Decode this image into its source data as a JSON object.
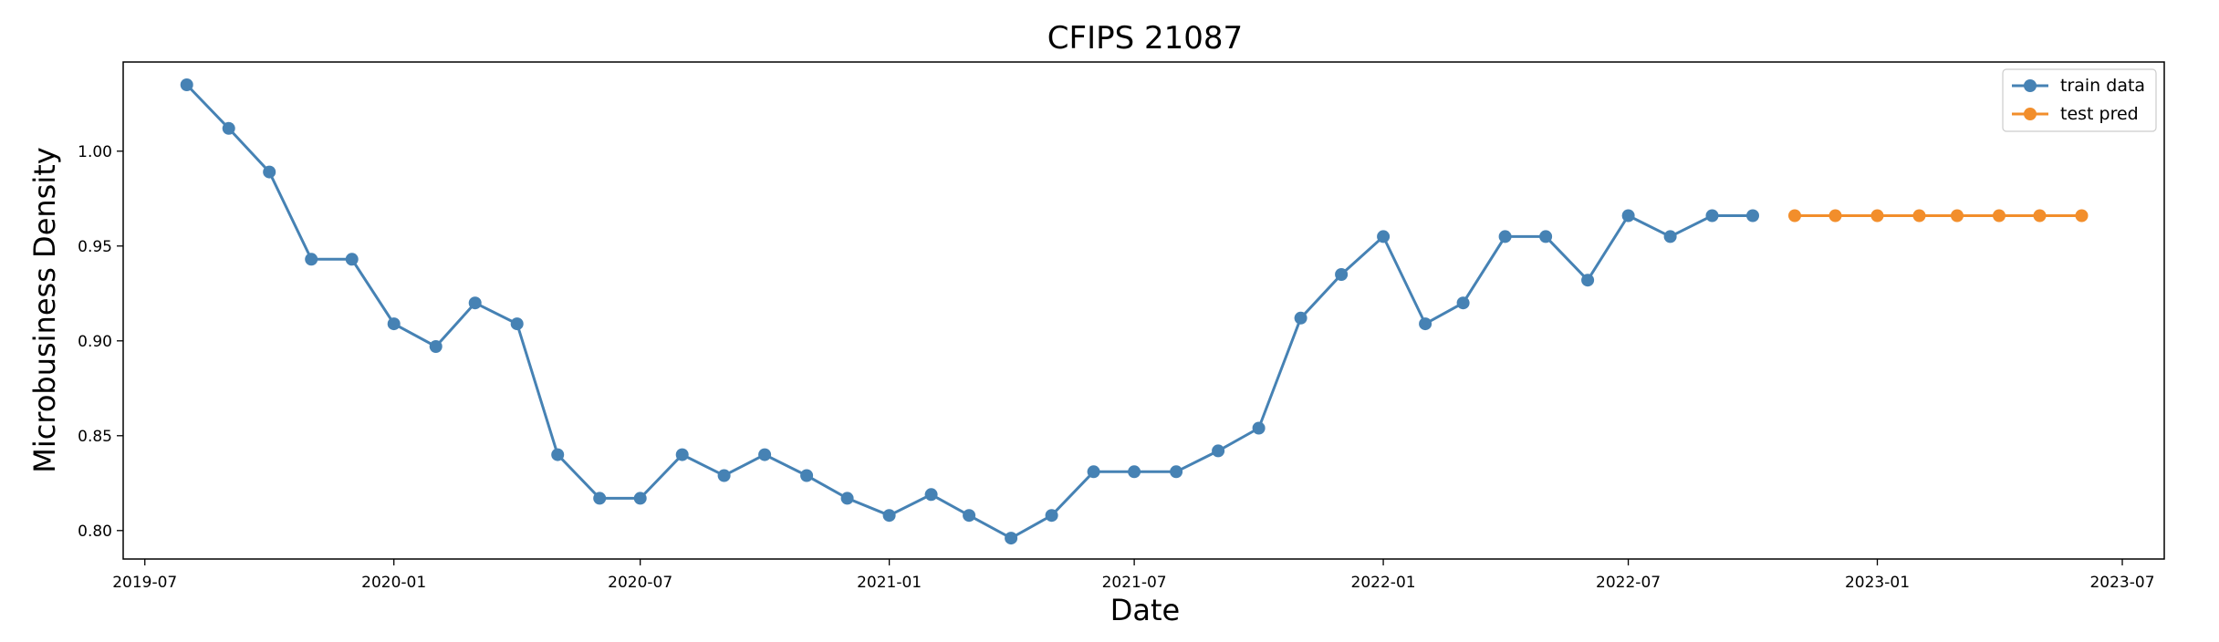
{
  "chart_data": {
    "type": "line",
    "title": "CFIPS 21087",
    "xlabel": "Date",
    "ylabel": "Microbusiness Density",
    "x_axis_type": "date",
    "xlim": [
      "2019-06-15",
      "2023-08-01"
    ],
    "ylim": [
      0.785,
      1.047
    ],
    "x_ticks": [
      "2019-07",
      "2020-01",
      "2020-07",
      "2021-01",
      "2021-07",
      "2022-01",
      "2022-07",
      "2023-01",
      "2023-07"
    ],
    "y_ticks": [
      "0.80",
      "0.85",
      "0.90",
      "0.95",
      "1.00"
    ],
    "grid": false,
    "legend_position": "top-right",
    "series": [
      {
        "name": "train data",
        "color": "#4682b4",
        "marker": "circle",
        "x": [
          "2019-08-01",
          "2019-09-01",
          "2019-10-01",
          "2019-11-01",
          "2019-12-01",
          "2020-01-01",
          "2020-02-01",
          "2020-03-01",
          "2020-04-01",
          "2020-05-01",
          "2020-06-01",
          "2020-07-01",
          "2020-08-01",
          "2020-09-01",
          "2020-10-01",
          "2020-11-01",
          "2020-12-01",
          "2021-01-01",
          "2021-02-01",
          "2021-03-01",
          "2021-04-01",
          "2021-05-01",
          "2021-06-01",
          "2021-07-01",
          "2021-08-01",
          "2021-09-01",
          "2021-10-01",
          "2021-11-01",
          "2021-12-01",
          "2022-01-01",
          "2022-02-01",
          "2022-03-01",
          "2022-04-01",
          "2022-05-01",
          "2022-06-01",
          "2022-07-01",
          "2022-08-01",
          "2022-09-01",
          "2022-10-01"
        ],
        "y": [
          1.035,
          1.012,
          0.989,
          0.943,
          0.943,
          0.909,
          0.897,
          0.92,
          0.909,
          0.84,
          0.817,
          0.817,
          0.84,
          0.829,
          0.84,
          0.829,
          0.817,
          0.808,
          0.819,
          0.808,
          0.796,
          0.808,
          0.831,
          0.831,
          0.831,
          0.842,
          0.854,
          0.912,
          0.935,
          0.955,
          0.909,
          0.92,
          0.955,
          0.955,
          0.932,
          0.966,
          0.955,
          0.966,
          0.966
        ]
      },
      {
        "name": "test pred",
        "color": "#f28e2b",
        "marker": "circle",
        "x": [
          "2022-11-01",
          "2022-12-01",
          "2023-01-01",
          "2023-02-01",
          "2023-03-01",
          "2023-04-01",
          "2023-05-01",
          "2023-06-01"
        ],
        "y": [
          0.966,
          0.966,
          0.966,
          0.966,
          0.966,
          0.966,
          0.966,
          0.966
        ]
      }
    ]
  }
}
